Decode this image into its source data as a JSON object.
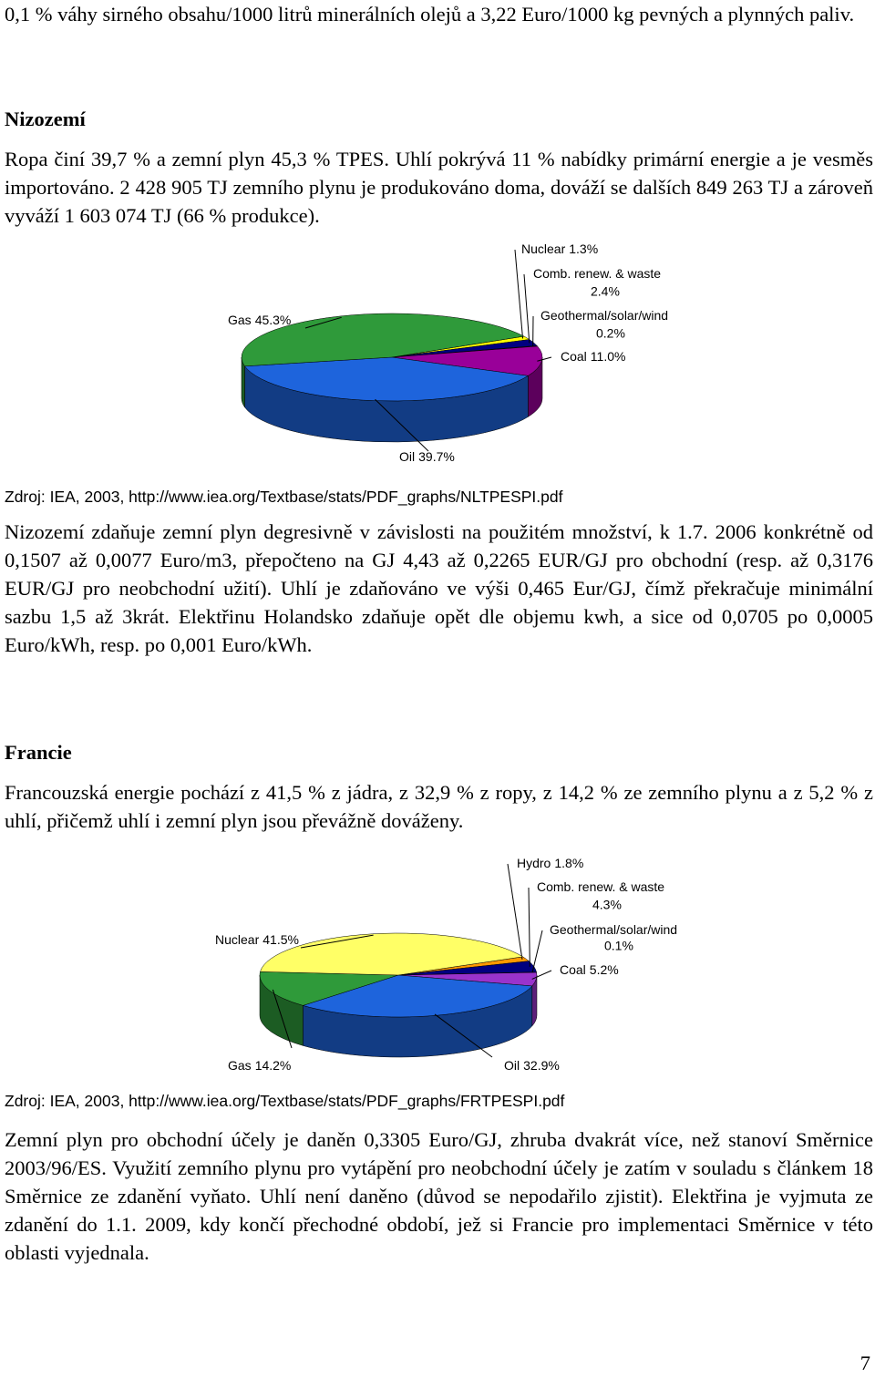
{
  "intro": "0,1 % váhy sirného obsahu/1000 litrů minerálních olejů a 3,22 Euro/1000 kg pevných a plynných paliv.",
  "netherlands": {
    "heading": "Nizozemí",
    "text": "Ropa činí 39,7 % a zemní plyn 45,3 % TPES. Uhlí pokrývá 11 % nabídky primární energie a je vesměs importováno. 2 428 905 TJ zemního plynu je produkováno doma, dováží se dalších 849 263 TJ a zároveň vyváží 1 603 074 TJ (66 % produkce).",
    "source": "Zdroj: IEA, 2003, http://www.iea.org/Textbase/stats/PDF_graphs/NLTPESPI.pdf",
    "text_2": "Nizozemí zdaňuje zemní plyn degresivně v závislosti na použitém množství, k 1.7. 2006 konkrétně od 0,1507 až 0,0077 Euro/m3, přepočteno na GJ 4,43 až 0,2265 EUR/GJ pro obchodní (resp. až 0,3176 EUR/GJ pro neobchodní užití). Uhlí je zdaňováno ve výši 0,465 Eur/GJ, čímž překračuje minimální sazbu 1,5 až 3krát. Elektřinu Holandsko zdaňuje opět dle objemu kwh, a sice od 0,0705 po 0,0005 Euro/kWh, resp. po 0,001 Euro/kWh."
  },
  "france": {
    "heading": "Francie",
    "text": "Francouzská energie pochází z 41,5 % z jádra, z 32,9 % z ropy, z 14,2 % ze zemního plynu a z 5,2 % z uhlí, přičemž uhlí i zemní plyn jsou převážně dováženy.",
    "source": "Zdroj: IEA, 2003, http://www.iea.org/Textbase/stats/PDF_graphs/FRTPESPI.pdf",
    "text_2": "Zemní plyn pro obchodní účely je daněn 0,3305 Euro/GJ, zhruba dvakrát více, než stanoví Směrnice 2003/96/ES. Využití zemního plynu pro vytápění pro neobchodní účely je zatím v souladu s článkem 18 Směrnice ze zdanění vyňato. Uhlí není daněno (důvod se nepodařilo zjistit). Elektřina je vyjmuta ze zdanění do 1.1. 2009, kdy končí přechodné období, jež si Francie pro implementaci Směrnice v této oblasti vyjednala."
  },
  "page_number": "7",
  "chart_data": [
    {
      "type": "pie",
      "labels": [
        "Nuclear",
        "Comb. renew. & waste",
        "Geothermal/solar/wind",
        "Coal",
        "Oil",
        "Gas"
      ],
      "values": [
        1.3,
        2.4,
        0.2,
        11.0,
        39.7,
        45.3
      ],
      "value_labels": [
        "1.3%",
        "2.4%",
        "0.2%",
        "11.0%",
        "39.7%",
        "45.3%"
      ],
      "colors": [
        "#ffff00",
        "#000080",
        "#3a3a6a",
        "#990099",
        "#1e64dc",
        "#2f9a3a"
      ]
    },
    {
      "type": "pie",
      "labels": [
        "Hydro",
        "Comb. renew. & waste",
        "Geothermal/solar/wind",
        "Coal",
        "Oil",
        "Gas",
        "Nuclear"
      ],
      "values": [
        1.8,
        4.3,
        0.1,
        5.2,
        32.9,
        14.2,
        41.5
      ],
      "value_labels": [
        "1.8%",
        "4.3%",
        "0.1%",
        "5.2%",
        "32.9%",
        "14.2%",
        "41.5%"
      ],
      "colors": [
        "#ff9900",
        "#000080",
        "#5050a0",
        "#9933cc",
        "#1e64dc",
        "#2f9a3a",
        "#ffff66"
      ]
    }
  ]
}
